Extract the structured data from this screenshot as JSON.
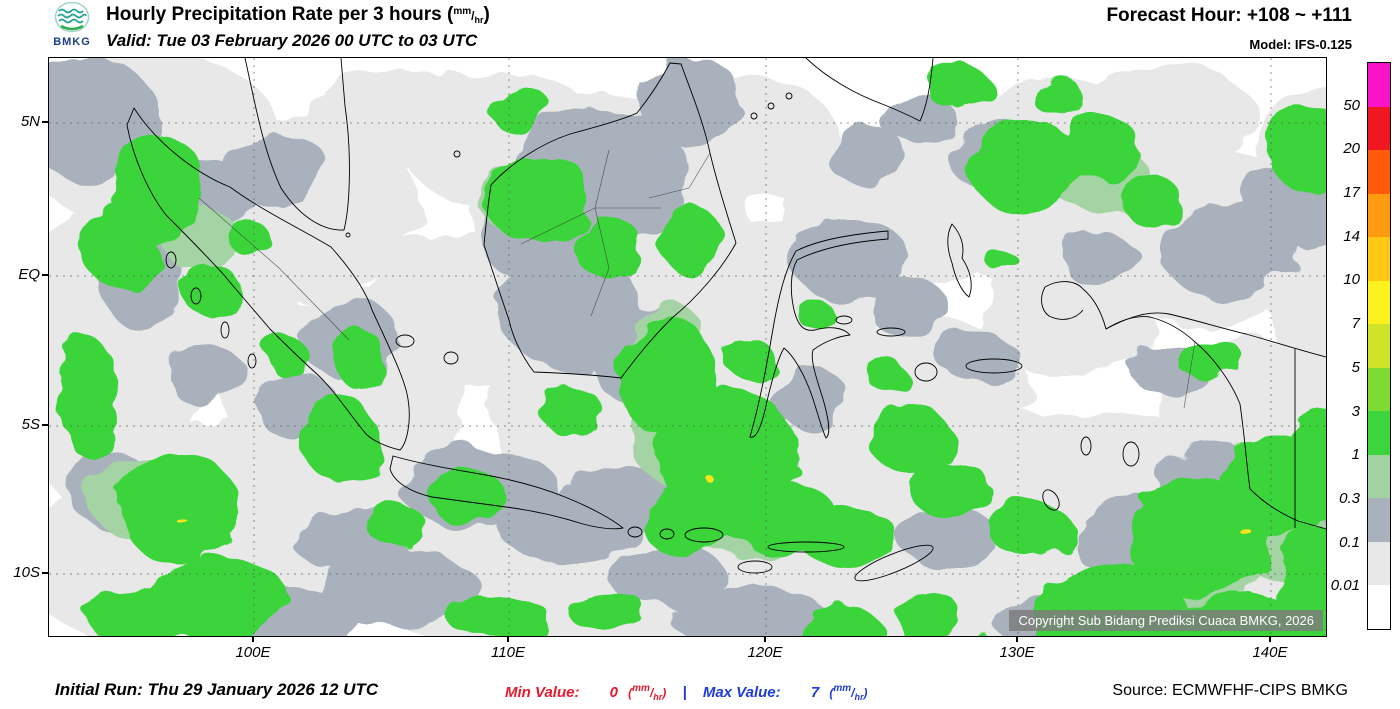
{
  "header": {
    "logo": "BMKG",
    "title": {
      "prefix": "Hourly Precipitation Rate per 3 hours (",
      "suffix": ")"
    },
    "valid": "Valid: Tue 03 February 2026 00 UTC to 03 UTC",
    "forecast_hour": "Forecast Hour: +108 ~ +111",
    "model": "Model: IFS-0.125"
  },
  "units": {
    "num": "mm",
    "den": "hr"
  },
  "map": {
    "lat_labels": [
      "5N",
      "EQ",
      "5S",
      "10S"
    ],
    "lon_labels": [
      "100E",
      "110E",
      "120E",
      "130E",
      "140E"
    ],
    "copyright": "Copyright Sub Bidang Prediksi Cuaca BMKG, 2026"
  },
  "legend": {
    "values": [
      "50",
      "20",
      "17",
      "14",
      "10",
      "7",
      "5",
      "3",
      "1",
      "0.3",
      "0.1",
      "0.01"
    ],
    "colors": [
      "#fa14c8",
      "#f01820",
      "#ff5a0a",
      "#ff9b10",
      "#ffc814",
      "#fdf21e",
      "#cfe428",
      "#7ddc32",
      "#3cd63c",
      "#a2d3a2",
      "#a9b2bc",
      "#e8e8e8",
      "#ffffff"
    ]
  },
  "footer": {
    "initial_run": "Initial Run: Thu 29 January 2026 12 UTC",
    "min_label": "Min Value:",
    "min_value": "0",
    "separator": "|",
    "max_label": "Max Value:",
    "max_value": "7",
    "source": "Source: ECMWFHF-CIPS BMKG"
  },
  "colors": {
    "min_text": "#e8192c",
    "max_text": "#1f3bd8",
    "precip_green": "#3bd43b",
    "precip_gray": "#a9b2bc",
    "precip_lightgray": "#e8e8e8"
  }
}
